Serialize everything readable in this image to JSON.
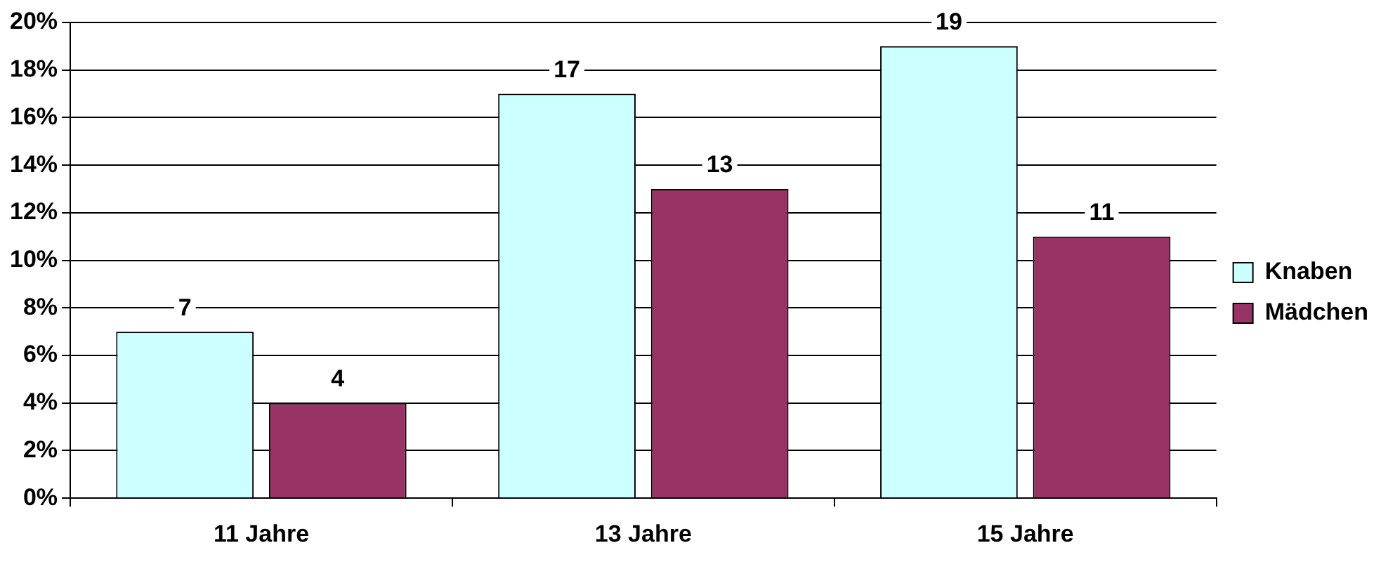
{
  "chart_data": {
    "type": "bar",
    "categories": [
      "11 Jahre",
      "13 Jahre",
      "15 Jahre"
    ],
    "series": [
      {
        "name": "Knaben",
        "color": "#ccffff",
        "values": [
          7,
          17,
          19
        ]
      },
      {
        "name": "Mädchen",
        "color": "#993366",
        "values": [
          4,
          13,
          11
        ]
      }
    ],
    "ylim": [
      0,
      20
    ],
    "yticks": [
      {
        "value": 0,
        "label": "0%"
      },
      {
        "value": 2,
        "label": "2%"
      },
      {
        "value": 4,
        "label": "4%"
      },
      {
        "value": 6,
        "label": "6%"
      },
      {
        "value": 8,
        "label": "8%"
      },
      {
        "value": 10,
        "label": "10%"
      },
      {
        "value": 12,
        "label": "12%"
      },
      {
        "value": 14,
        "label": "14%"
      },
      {
        "value": 16,
        "label": "16%"
      },
      {
        "value": 18,
        "label": "18%"
      },
      {
        "value": 20,
        "label": "20%"
      }
    ],
    "grid": "y",
    "legend": "right",
    "data_labels": true
  }
}
